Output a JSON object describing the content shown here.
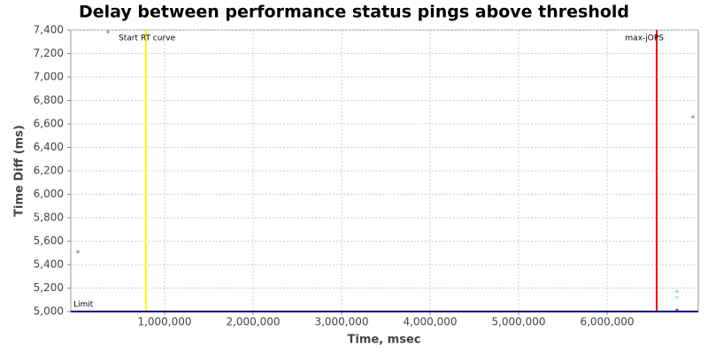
{
  "chart_data": {
    "type": "scatter",
    "title": "Delay between performance status pings above threshold",
    "x_label": "Time, msec",
    "y_label": "Time Diff (ms)",
    "xlim": [
      -60000,
      7030000
    ],
    "ylim": [
      5000,
      7400
    ],
    "xticks": [
      {
        "value": 1000000,
        "label": "1,000,000"
      },
      {
        "value": 2000000,
        "label": "2,000,000"
      },
      {
        "value": 3000000,
        "label": "3,000,000"
      },
      {
        "value": 4000000,
        "label": "4,000,000"
      },
      {
        "value": 5000000,
        "label": "5,000,000"
      },
      {
        "value": 6000000,
        "label": "6,000,000"
      }
    ],
    "yticks": [
      {
        "value": 5000,
        "label": "5,000"
      },
      {
        "value": 5200,
        "label": "5,200"
      },
      {
        "value": 5400,
        "label": "5,400"
      },
      {
        "value": 5600,
        "label": "5,600"
      },
      {
        "value": 5800,
        "label": "5,800"
      },
      {
        "value": 6000,
        "label": "6,000"
      },
      {
        "value": 6200,
        "label": "6,200"
      },
      {
        "value": 6400,
        "label": "6,400"
      },
      {
        "value": 6600,
        "label": "6,600"
      },
      {
        "value": 6800,
        "label": "6,800"
      },
      {
        "value": 7000,
        "label": "7,000"
      },
      {
        "value": 7200,
        "label": "7,200"
      },
      {
        "value": 7400,
        "label": "7,400"
      }
    ],
    "grid": true,
    "series": [
      {
        "color": "#999999",
        "x": [
          20000,
          360000,
          6970000
        ],
        "values": [
          5510,
          7385,
          6660
        ]
      },
      {
        "color": "#88ee88",
        "x": [
          6790000
        ],
        "values": [
          5170
        ]
      },
      {
        "color": "#88eeee",
        "x": [
          6790000
        ],
        "values": [
          5120
        ]
      },
      {
        "color": "#3344aa",
        "x": [
          6790000
        ],
        "values": [
          5010
        ]
      }
    ],
    "x_markers": [
      {
        "label": "Start RT curve",
        "value": 790000,
        "color": "#ffff00"
      },
      {
        "label": "max-jOPS",
        "value": 6560000,
        "color": "#ee0000"
      }
    ],
    "y_markers": [
      {
        "label": "Limit",
        "value": 5000,
        "color": "#000080"
      }
    ]
  }
}
